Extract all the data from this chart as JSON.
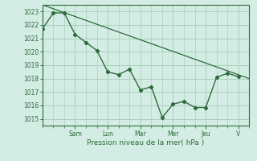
{
  "title": "",
  "xlabel": "Pression niveau de la mer( hPa )",
  "ylabel": "",
  "bg_color": "#d4ede4",
  "grid_color": "#aacfbe",
  "line_color": "#2d6b3a",
  "ylim": [
    1014.5,
    1023.5
  ],
  "yticks": [
    1015,
    1016,
    1017,
    1018,
    1019,
    1020,
    1021,
    1022,
    1023
  ],
  "day_labels": [
    "Sam",
    "Lun",
    "Mar",
    "Mer",
    "Jeu",
    "V"
  ],
  "day_positions": [
    24,
    48,
    72,
    96,
    120,
    144
  ],
  "series1_x": [
    0,
    8,
    16,
    24,
    32,
    40,
    48,
    56,
    64,
    72,
    80,
    88,
    96,
    104,
    112,
    120,
    128,
    136,
    144
  ],
  "series1_y": [
    1021.7,
    1022.9,
    1022.9,
    1021.3,
    1020.7,
    1020.1,
    1018.5,
    1018.3,
    1018.7,
    1017.15,
    1017.4,
    1015.1,
    1016.1,
    1016.3,
    1015.85,
    1015.85,
    1018.1,
    1018.4,
    1018.15
  ],
  "series2_x": [
    0,
    152
  ],
  "series2_y": [
    1023.5,
    1018.0
  ],
  "xlim": [
    0,
    152
  ]
}
